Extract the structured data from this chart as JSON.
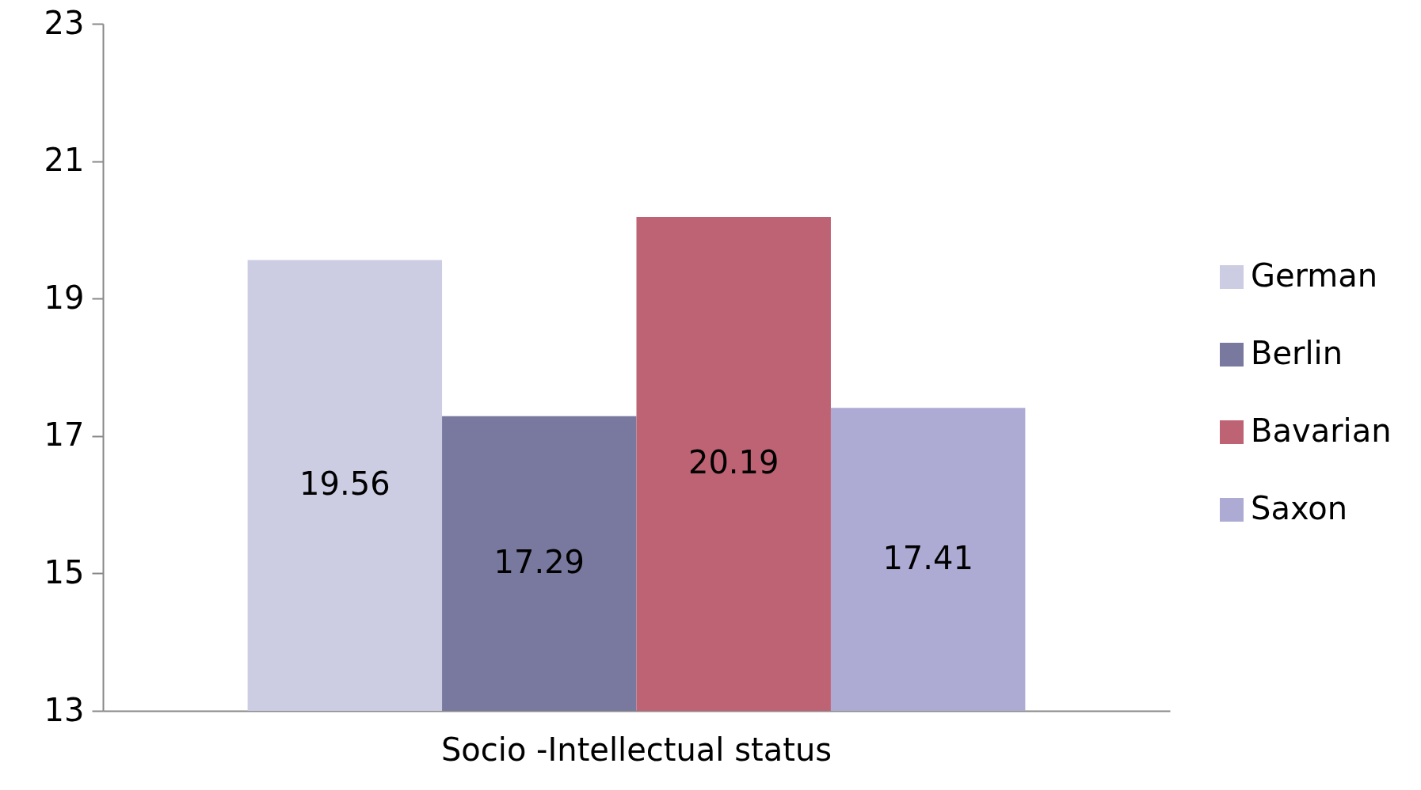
{
  "chart_data": {
    "type": "bar",
    "categories": [
      "Socio -Intellectual status"
    ],
    "series": [
      {
        "name": "German",
        "color": "#cccde3",
        "values": [
          19.56
        ]
      },
      {
        "name": "Berlin",
        "color": "#79799f",
        "values": [
          17.29
        ]
      },
      {
        "name": "Bavarian",
        "color": "#be6373",
        "values": [
          20.19
        ]
      },
      {
        "name": "Saxon",
        "color": "#adabd4",
        "values": [
          17.41
        ]
      }
    ],
    "ylim": [
      13,
      23
    ],
    "yticks": [
      13,
      15,
      17,
      19,
      21,
      23
    ],
    "data_labels": true,
    "legend": "right"
  }
}
